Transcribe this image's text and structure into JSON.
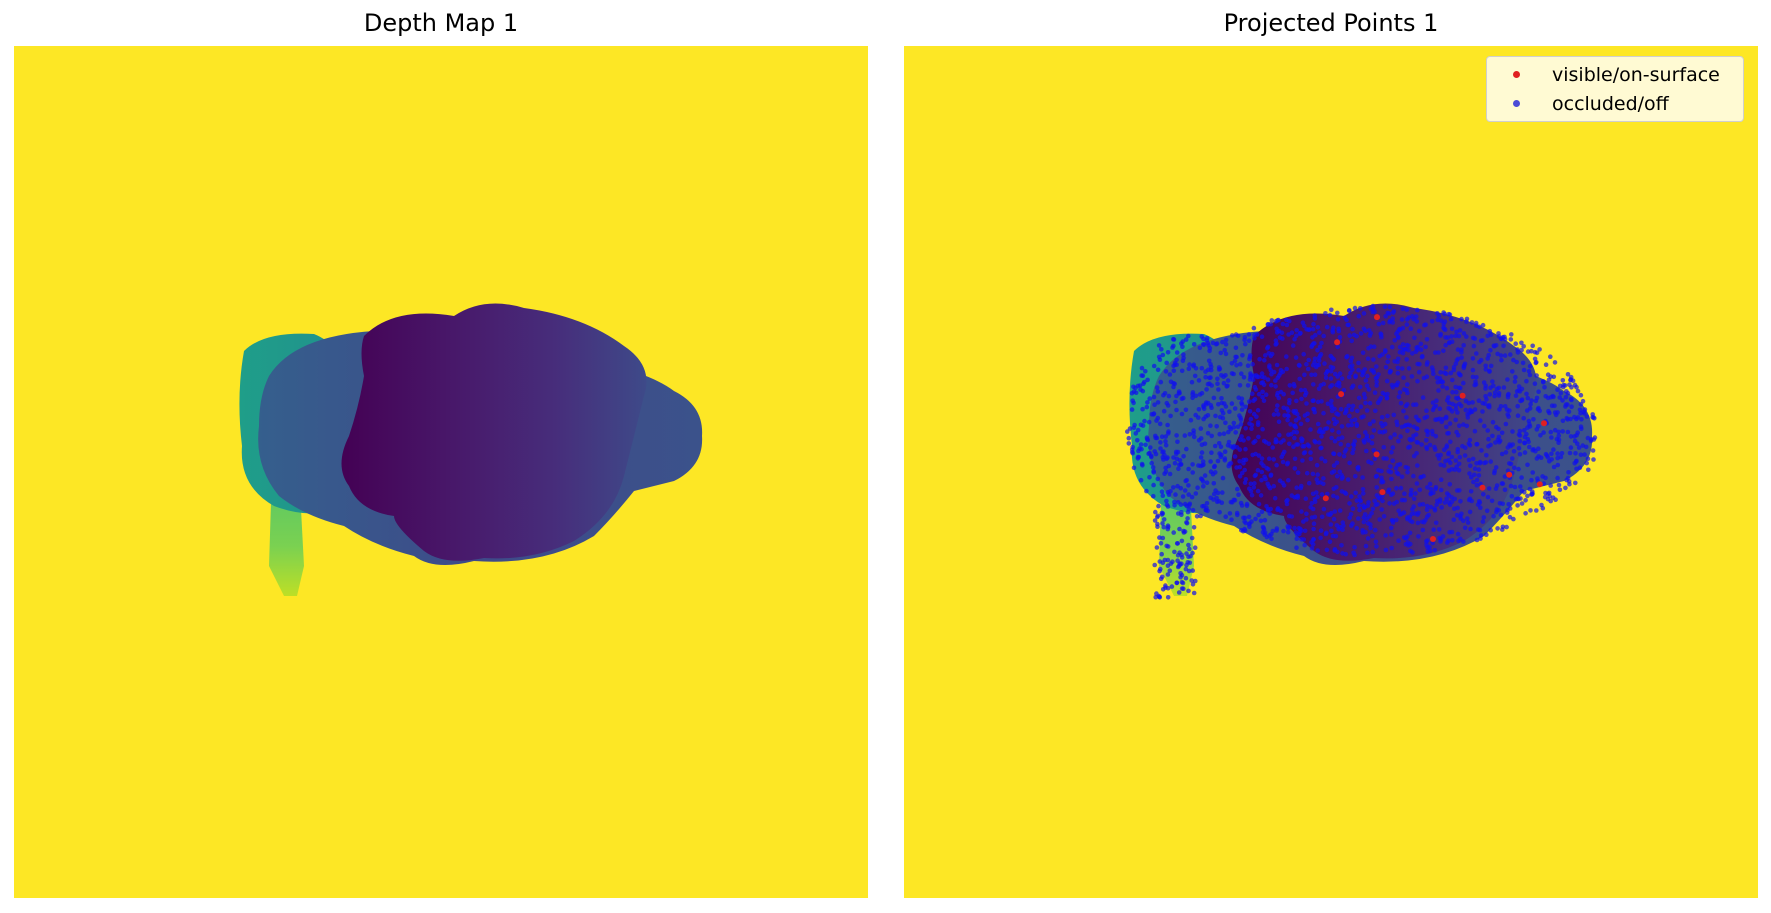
{
  "chart_data": [
    {
      "type": "heatmap",
      "title": "Depth Map 1",
      "colormap": "viridis",
      "axes_visible": false,
      "background_color": "#fde725",
      "note_colors": [
        "#fde725",
        "#21918c",
        "#3b528b",
        "#440154",
        "#7ad151"
      ]
    },
    {
      "type": "scatter",
      "title": "Projected Points 1",
      "background": "depth heatmap (viridis)",
      "axes_visible": false,
      "legend_position": "top-right",
      "series": [
        {
          "name": "visible/on-surface",
          "color": "#e02020",
          "count_estimate": 12
        },
        {
          "name": "occluded/off",
          "color": "#1010ee",
          "count_estimate": 2200
        }
      ]
    }
  ]
}
